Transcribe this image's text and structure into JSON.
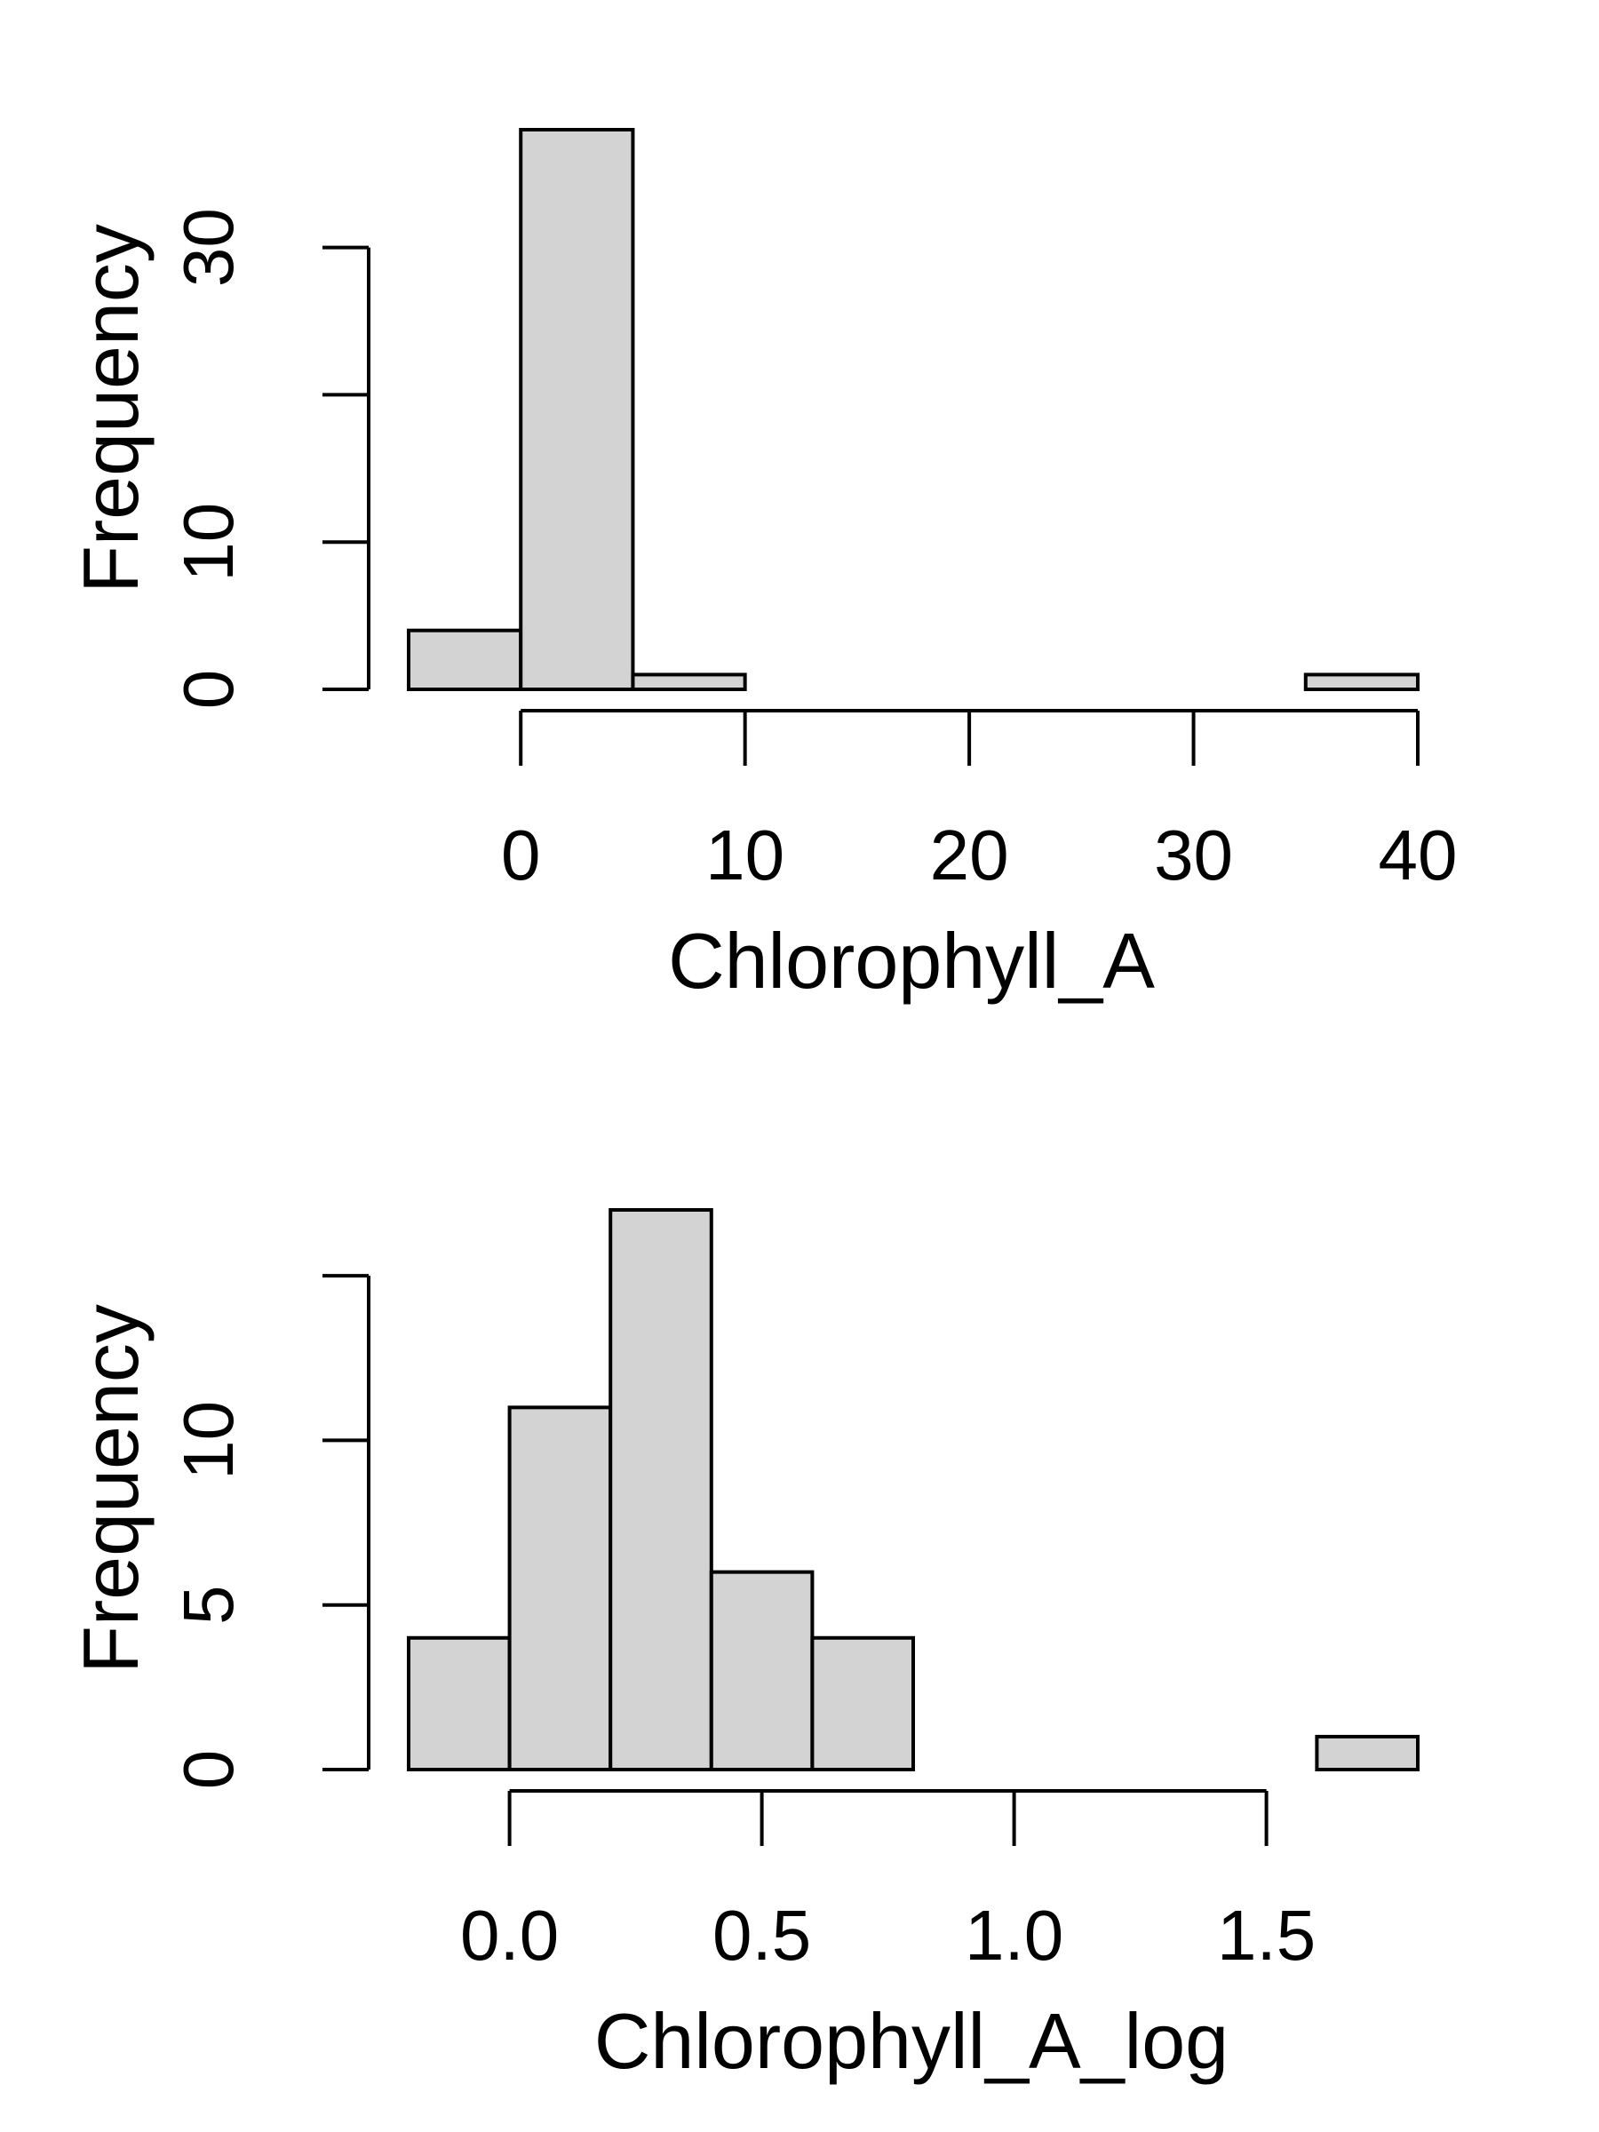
{
  "chart_data": [
    {
      "type": "bar",
      "title": "",
      "xlabel": "Chlorophyll_A",
      "ylabel": "Frequency",
      "bins": [
        {
          "x0": -5,
          "x1": 0,
          "count": 4
        },
        {
          "x0": 0,
          "x1": 5,
          "count": 38
        },
        {
          "x0": 5,
          "x1": 10,
          "count": 1
        },
        {
          "x0": 10,
          "x1": 15,
          "count": 0
        },
        {
          "x0": 15,
          "x1": 20,
          "count": 0
        },
        {
          "x0": 20,
          "x1": 25,
          "count": 0
        },
        {
          "x0": 25,
          "x1": 30,
          "count": 0
        },
        {
          "x0": 30,
          "x1": 35,
          "count": 0
        },
        {
          "x0": 35,
          "x1": 40,
          "count": 1
        }
      ],
      "xlim": [
        -5,
        40
      ],
      "ylim": [
        0,
        38
      ],
      "x_ticks": [
        0,
        10,
        20,
        30,
        40
      ],
      "x_tick_labels": [
        "0",
        "10",
        "20",
        "30",
        "40"
      ],
      "y_ticks": [
        0,
        10,
        20,
        30
      ],
      "y_tick_labels": [
        "0",
        "10",
        "",
        "30"
      ],
      "grid": false,
      "bar_fill": "#d3d3d3",
      "bar_stroke": "#000000"
    },
    {
      "type": "bar",
      "title": "",
      "xlabel": "Chlorophyll_A_log",
      "ylabel": "Frequency",
      "bins": [
        {
          "x0": -0.2,
          "x1": 0.0,
          "count": 4
        },
        {
          "x0": 0.0,
          "x1": 0.2,
          "count": 11
        },
        {
          "x0": 0.2,
          "x1": 0.4,
          "count": 17
        },
        {
          "x0": 0.4,
          "x1": 0.6,
          "count": 6
        },
        {
          "x0": 0.6,
          "x1": 0.8,
          "count": 4
        },
        {
          "x0": 0.8,
          "x1": 1.0,
          "count": 0
        },
        {
          "x0": 1.0,
          "x1": 1.2,
          "count": 0
        },
        {
          "x0": 1.2,
          "x1": 1.4,
          "count": 0
        },
        {
          "x0": 1.4,
          "x1": 1.6,
          "count": 0
        },
        {
          "x0": 1.6,
          "x1": 1.8,
          "count": 1
        }
      ],
      "xlim": [
        -0.2,
        1.8
      ],
      "ylim": [
        0,
        17
      ],
      "x_ticks": [
        0.0,
        0.5,
        1.0,
        1.5
      ],
      "x_tick_labels": [
        "0.0",
        "0.5",
        "1.0",
        "1.5"
      ],
      "y_ticks": [
        0,
        5,
        10,
        15
      ],
      "y_tick_labels": [
        "0",
        "5",
        "10",
        ""
      ],
      "grid": false,
      "bar_fill": "#d3d3d3",
      "bar_stroke": "#000000"
    }
  ]
}
